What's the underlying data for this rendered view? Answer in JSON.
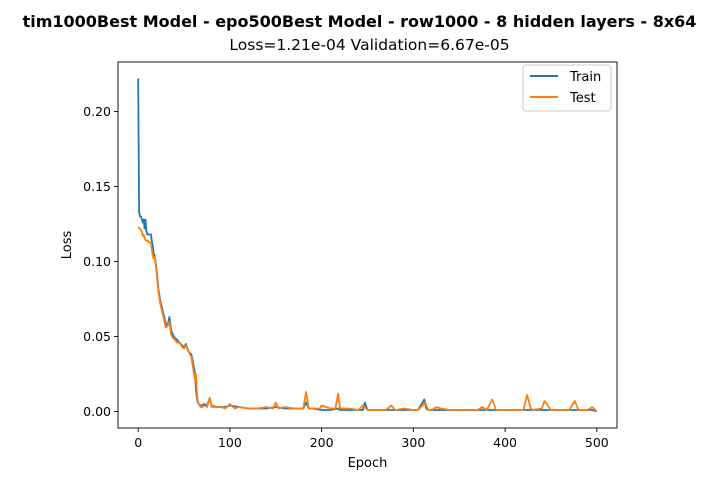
{
  "chart_data": {
    "type": "line",
    "suptitle": "tim1000Best Model - epo500Best Model - row1000 - 8 hidden layers - 8x64",
    "title": "Loss=1.21e-04 Validation=6.67e-05",
    "xlabel": "Epoch",
    "ylabel": "Loss",
    "xlim": [
      -22,
      522
    ],
    "ylim": [
      -0.011,
      0.233
    ],
    "xticks": [
      0,
      100,
      200,
      300,
      400,
      500
    ],
    "yticks": [
      0.0,
      0.05,
      0.1,
      0.15,
      0.2
    ],
    "xtick_labels": [
      "0",
      "100",
      "200",
      "300",
      "400",
      "500"
    ],
    "ytick_labels": [
      "0.00",
      "0.05",
      "0.10",
      "0.15",
      "0.20"
    ],
    "grid": false,
    "legend_position": "top-right",
    "series": [
      {
        "name": "Train",
        "color": "#1f77b4",
        "x": [
          0,
          1,
          2,
          3,
          4,
          5,
          6,
          7,
          8,
          9,
          10,
          12,
          14,
          15,
          16,
          17,
          18,
          20,
          22,
          24,
          26,
          28,
          30,
          32,
          34,
          36,
          38,
          40,
          42,
          45,
          48,
          50,
          52,
          55,
          58,
          60,
          62,
          63,
          64,
          65,
          66,
          68,
          70,
          72,
          75,
          78,
          80,
          85,
          90,
          95,
          100,
          110,
          120,
          130,
          140,
          150,
          160,
          170,
          180,
          183,
          186,
          190,
          200,
          210,
          218,
          220,
          230,
          240,
          245,
          247,
          250,
          260,
          270,
          280,
          290,
          300,
          305,
          310,
          312,
          314,
          316,
          320,
          330,
          340,
          350,
          360,
          370,
          380,
          385,
          390,
          400,
          410,
          420,
          425,
          430,
          440,
          443,
          450,
          460,
          470,
          476,
          480,
          490,
          495,
          500
        ],
        "y": [
          0.222,
          0.133,
          0.13,
          0.13,
          0.128,
          0.126,
          0.128,
          0.122,
          0.128,
          0.12,
          0.118,
          0.118,
          0.118,
          0.113,
          0.11,
          0.105,
          0.104,
          0.095,
          0.082,
          0.074,
          0.069,
          0.064,
          0.059,
          0.057,
          0.063,
          0.054,
          0.051,
          0.049,
          0.048,
          0.046,
          0.044,
          0.043,
          0.045,
          0.04,
          0.038,
          0.032,
          0.025,
          0.014,
          0.009,
          0.006,
          0.005,
          0.004,
          0.004,
          0.005,
          0.004,
          0.009,
          0.004,
          0.003,
          0.003,
          0.003,
          0.004,
          0.003,
          0.002,
          0.002,
          0.002,
          0.003,
          0.002,
          0.002,
          0.002,
          0.006,
          0.002,
          0.002,
          0.001,
          0.001,
          0.002,
          0.001,
          0.001,
          0.001,
          0.001,
          0.006,
          0.001,
          0.001,
          0.001,
          0.001,
          0.001,
          0.001,
          0.001,
          0.006,
          0.008,
          0.002,
          0.001,
          0.001,
          0.001,
          0.001,
          0.001,
          0.001,
          0.001,
          0.001,
          0.001,
          0.001,
          0.001,
          0.001,
          0.001,
          0.001,
          0.001,
          0.001,
          0.001,
          0.001,
          0.001,
          0.001,
          0.001,
          0.001,
          0.001,
          0.001,
          0.0001
        ]
      },
      {
        "name": "Test",
        "color": "#ff7f0e",
        "x": [
          0,
          2,
          4,
          5,
          6,
          8,
          10,
          12,
          14,
          16,
          17,
          18,
          20,
          22,
          24,
          26,
          28,
          30,
          32,
          34,
          36,
          38,
          40,
          42,
          45,
          48,
          50,
          52,
          55,
          58,
          60,
          62,
          63,
          64,
          65,
          66,
          68,
          70,
          72,
          75,
          78,
          80,
          85,
          90,
          95,
          100,
          105,
          110,
          120,
          130,
          140,
          147,
          150,
          153,
          160,
          170,
          180,
          183,
          186,
          190,
          198,
          200,
          210,
          215,
          218,
          220,
          230,
          240,
          245,
          250,
          260,
          270,
          276,
          280,
          290,
          300,
          305,
          310,
          313,
          316,
          320,
          325,
          330,
          340,
          350,
          360,
          370,
          375,
          380,
          386,
          390,
          400,
          410,
          420,
          424,
          428,
          430,
          440,
          443,
          450,
          460,
          470,
          476,
          480,
          490,
          495,
          500
        ],
        "y": [
          0.123,
          0.122,
          0.12,
          0.117,
          0.118,
          0.114,
          0.114,
          0.113,
          0.112,
          0.103,
          0.102,
          0.103,
          0.093,
          0.08,
          0.072,
          0.067,
          0.062,
          0.056,
          0.057,
          0.06,
          0.051,
          0.049,
          0.048,
          0.046,
          0.046,
          0.043,
          0.042,
          0.044,
          0.04,
          0.036,
          0.028,
          0.021,
          0.025,
          0.013,
          0.007,
          0.005,
          0.003,
          0.003,
          0.004,
          0.003,
          0.009,
          0.003,
          0.003,
          0.003,
          0.002,
          0.005,
          0.002,
          0.003,
          0.002,
          0.002,
          0.003,
          0.002,
          0.006,
          0.002,
          0.003,
          0.002,
          0.002,
          0.013,
          0.002,
          0.002,
          0.002,
          0.004,
          0.002,
          0.002,
          0.012,
          0.002,
          0.002,
          0.001,
          0.004,
          0.001,
          0.001,
          0.001,
          0.004,
          0.001,
          0.002,
          0.001,
          0.001,
          0.004,
          0.006,
          0.001,
          0.001,
          0.003,
          0.002,
          0.001,
          0.001,
          0.001,
          0.001,
          0.003,
          0.001,
          0.008,
          0.001,
          0.001,
          0.001,
          0.001,
          0.011,
          0.002,
          0.001,
          0.002,
          0.007,
          0.001,
          0.001,
          0.001,
          0.007,
          0.001,
          0.001,
          0.003,
          0.0001
        ]
      }
    ]
  }
}
